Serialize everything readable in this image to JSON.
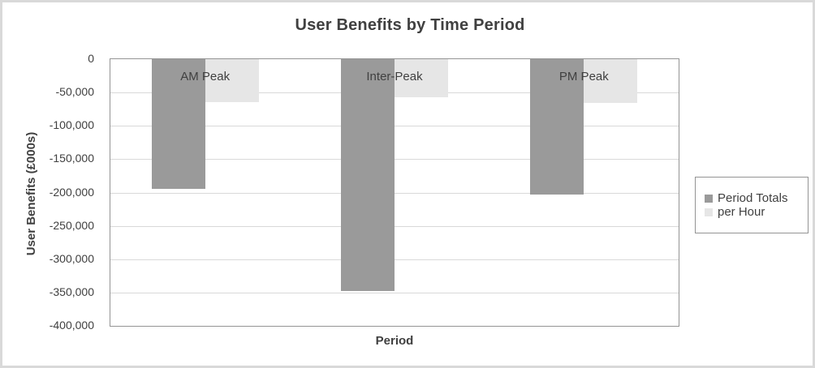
{
  "chart_data": {
    "type": "bar",
    "title": "User Benefits by Time Period",
    "xlabel": "Period",
    "ylabel": "User Benefits (£000s)",
    "categories": [
      "AM Peak",
      "Inter-Peak",
      "PM Peak"
    ],
    "series": [
      {
        "name": "Period Totals",
        "color": "#9a9a9a",
        "values": [
          -194000,
          -348000,
          -203000
        ]
      },
      {
        "name": "per Hour",
        "color": "#e6e6e6",
        "values": [
          -64000,
          -57000,
          -66000
        ]
      }
    ],
    "ylim": [
      -400000,
      0
    ],
    "ytick_step": 50000,
    "ytick_labels": [
      "0",
      "-50,000",
      "-100,000",
      "-150,000",
      "-200,000",
      "-250,000",
      "-300,000",
      "-350,000",
      "-400,000"
    ],
    "grid": true,
    "legend_position": "right",
    "category_labels_inside_plot": true
  },
  "legend": {
    "items": [
      {
        "label": "Period Totals",
        "color": "#9a9a9a"
      },
      {
        "label": "per Hour",
        "color": "#e6e6e6"
      }
    ]
  },
  "colors": {
    "text": "#404040",
    "gridline": "#d9d9d9",
    "plot_border": "#949494",
    "outer_border": "#d9d9d9",
    "background": "#ffffff",
    "series_dark": "#9a9a9a",
    "series_light": "#e6e6e6"
  }
}
